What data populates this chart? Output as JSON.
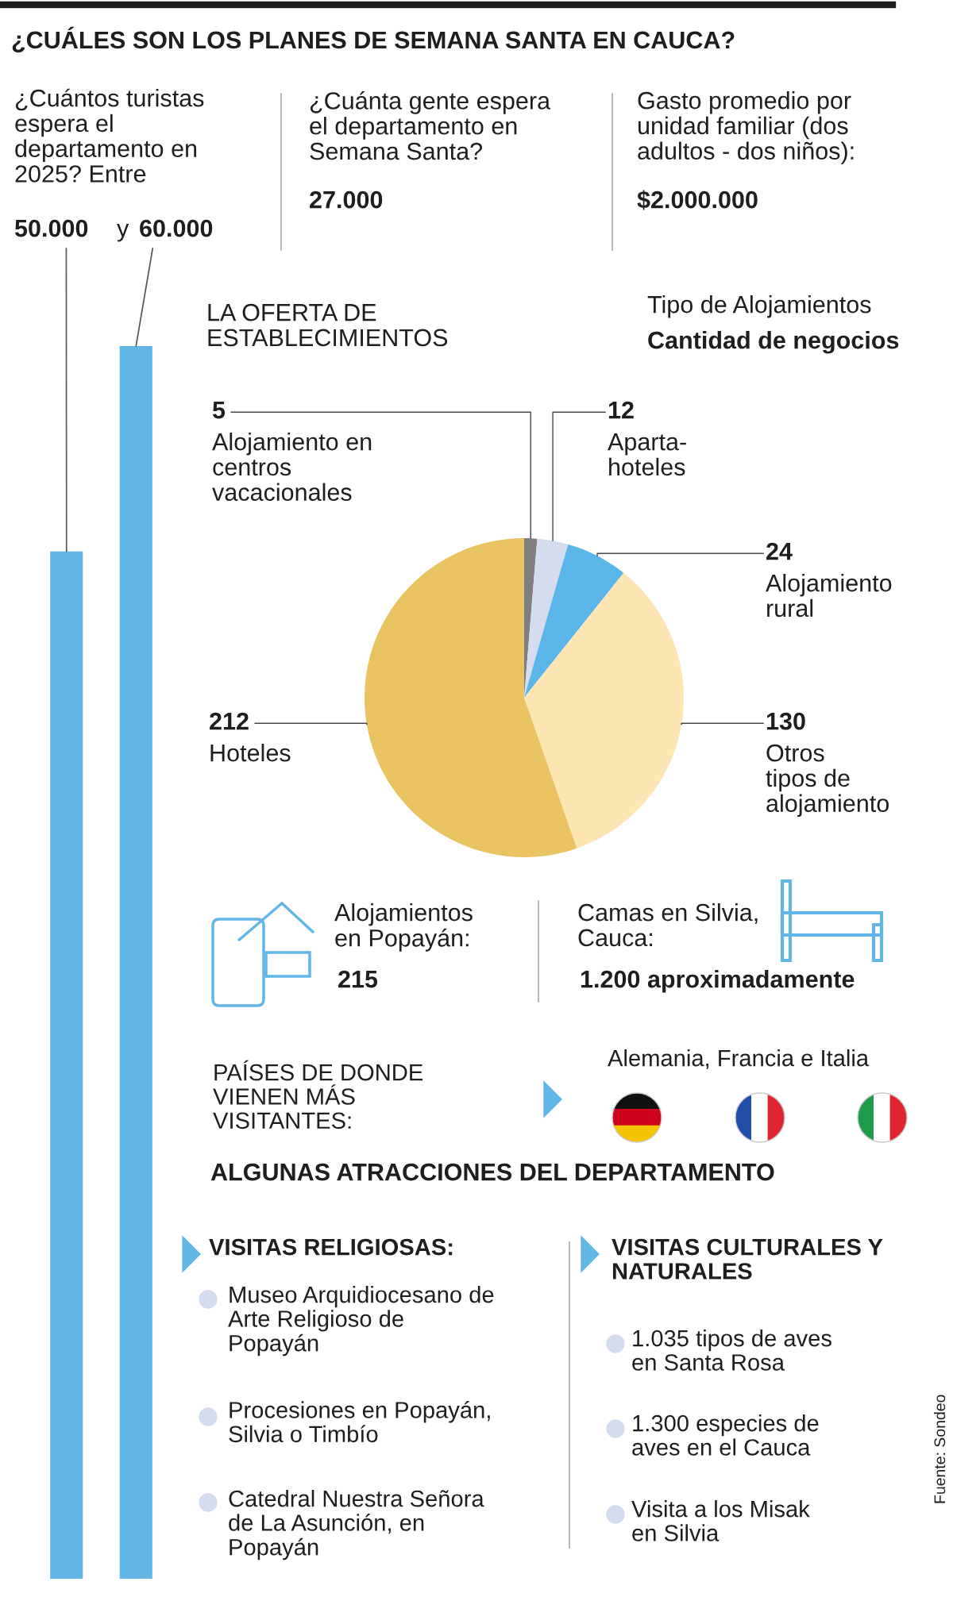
{
  "chart_data": [
    {
      "type": "bar",
      "title": "¿Cuántos turistas espera el departamento en 2025? Entre",
      "categories": [
        null,
        null
      ],
      "values": [
        50000,
        60000
      ],
      "colors": [
        "#62b6e6",
        "#62b6e6"
      ],
      "value_labels": [
        "50.000",
        "60.000"
      ],
      "annotations": [
        "y"
      ],
      "ylim": [
        0,
        60000
      ],
      "tick_labels": false
    },
    {
      "type": "pie",
      "title": "LA OFERTA DE ESTABLECIMIENTOS",
      "annotations": [
        "Tipo de Alojamientos",
        "Cantidad de negocios"
      ],
      "categories": [
        "Alojamiento en centros vacacionales",
        "Aparta-hoteles",
        "Alojamiento rural",
        "Otros tipos de alojamiento",
        "Hoteles"
      ],
      "values": [
        5,
        12,
        24,
        130,
        212
      ],
      "colors": [
        "#7f7f7f",
        "#d6dcf0",
        "#5bb5e8",
        "#fde6b4",
        "#e9c262"
      ],
      "data_labels": true
    },
    {
      "type": "other",
      "title": "¿CUÁLES SON LOS PLANES DE SEMANA SANTA EN CAUCA?",
      "annotations": [
        "¿Cuánta gente espera el departamento en Semana Santa?",
        "27.000",
        "Gasto promedio por unidad familiar (dos adultos - dos niños):",
        "$2.000.000",
        "Alojamientos en Popayán:",
        "215",
        "Camas en Silvia, Cauca:",
        "1.200 aproximadamente",
        "PAÍSES DE DONDE VIENEN MÁS VISITANTES:",
        "Alemania, Francia e Italia",
        "ALGUNAS ATRACCIONES DEL DEPARTAMENTO",
        "VISITAS RELIGIOSAS:",
        "Museo Arquidiocesano de Arte Religioso de Popayán",
        "Procesiones en Popayán, Silvia o Timbío",
        "Catedral Nuestra Señora de La Asunción, en Popayán",
        "VISITAS CULTURALES Y NATURALES",
        "1.035 tipos de aves en Santa Rosa",
        "1.300 especies de aves en el Cauca",
        "Visita a los Misak en Silvia",
        "Fuente: Sondeo"
      ]
    }
  ]
}
